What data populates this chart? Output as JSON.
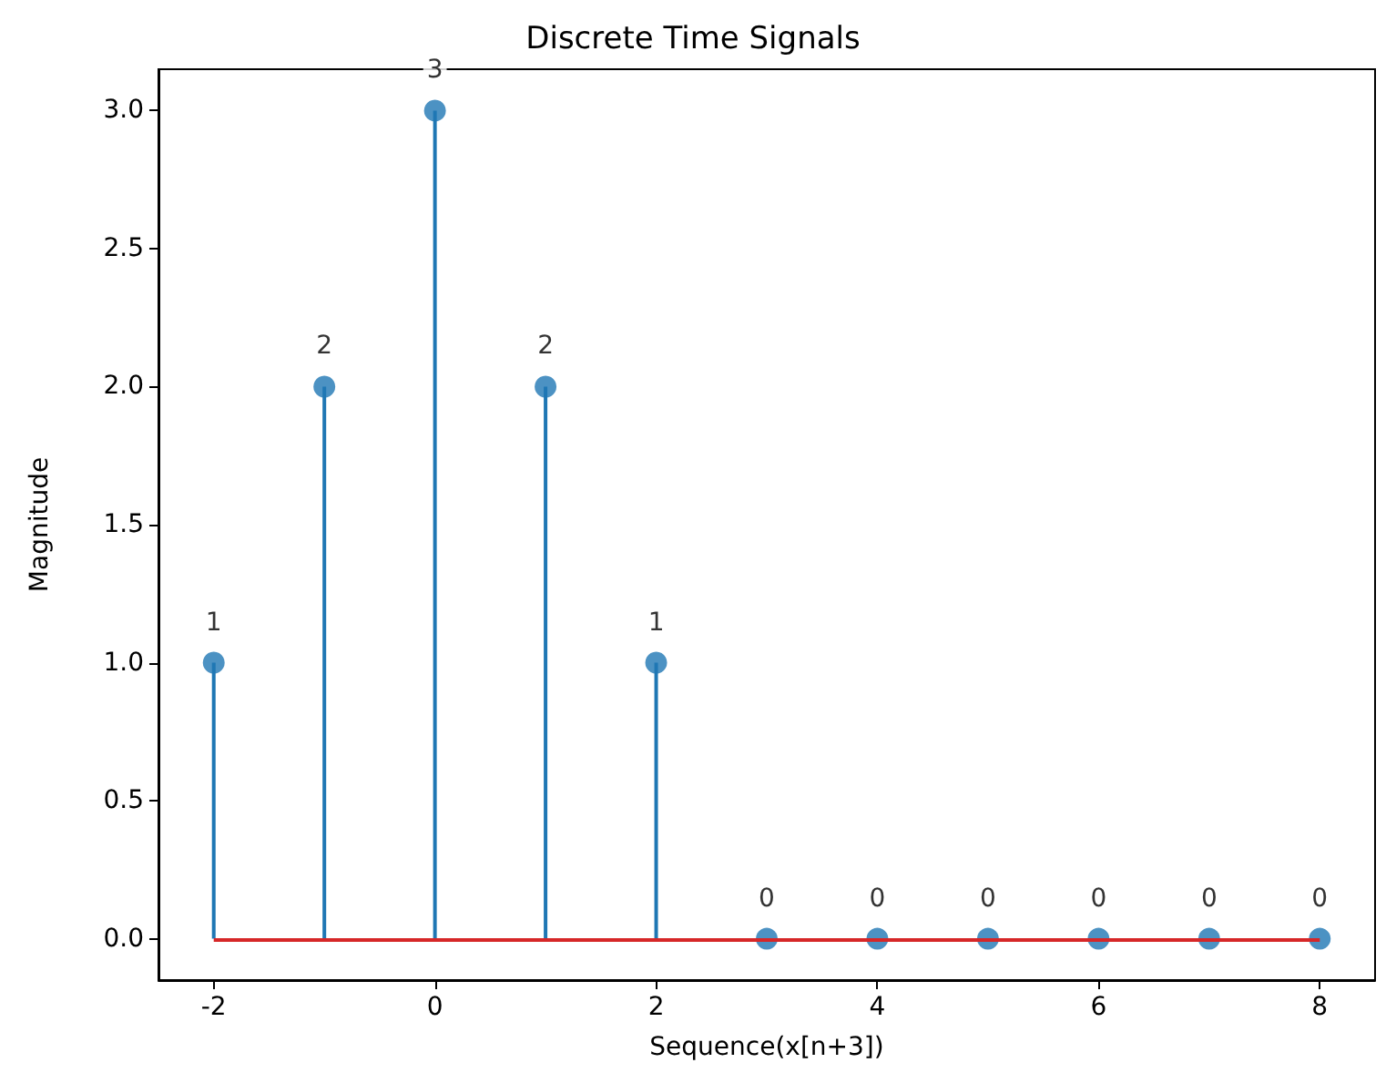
{
  "chart_data": {
    "type": "lollipop",
    "title": "Discrete Time Signals",
    "xlabel": "Sequence(x[n+3])",
    "ylabel": "Magnitude",
    "x": [
      -2,
      -1,
      0,
      1,
      2,
      3,
      4,
      5,
      6,
      7,
      8
    ],
    "series": [
      {
        "color": "#1f77b4",
        "values": [
          1,
          2,
          3,
          2,
          1,
          0,
          0,
          0,
          0,
          0,
          0
        ]
      }
    ],
    "xlim": [
      -2.5,
      8.5
    ],
    "xticks": [
      -2,
      0,
      2,
      4,
      6,
      8
    ],
    "ylim": [
      -0.15,
      3.15
    ],
    "yticks": [
      {
        "value": 0,
        "label": "0.0"
      },
      {
        "value": 0.5,
        "label": "0.5"
      },
      {
        "value": 1,
        "label": "1.0"
      },
      {
        "value": 1.5,
        "label": "1.5"
      },
      {
        "value": 2,
        "label": "2.0"
      },
      {
        "value": 2.5,
        "label": "2.5"
      },
      {
        "value": 3,
        "label": "3.0"
      }
    ],
    "ref_lines": [
      {
        "axis": "y",
        "value": 0,
        "color": "#d62728"
      }
    ],
    "data_labels": true,
    "marker": "circle",
    "grid": false
  }
}
